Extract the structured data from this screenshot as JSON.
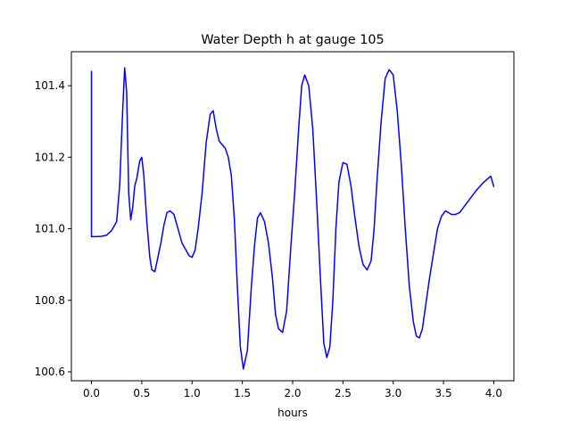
{
  "chart_data": {
    "type": "line",
    "title": "Water Depth h at gauge 105",
    "xlabel": "hours",
    "ylabel": "",
    "xlim": [
      -0.2,
      4.2
    ],
    "ylim": [
      100.575,
      101.495
    ],
    "xticks": [
      0.0,
      0.5,
      1.0,
      1.5,
      2.0,
      2.5,
      3.0,
      3.5,
      4.0
    ],
    "xtick_labels": [
      "0.0",
      "0.5",
      "1.0",
      "1.5",
      "2.0",
      "2.5",
      "3.0",
      "3.5",
      "4.0"
    ],
    "yticks": [
      100.6,
      100.8,
      101.0,
      101.2,
      101.4
    ],
    "ytick_labels": [
      "100.6",
      "100.8",
      "101.0",
      "101.2",
      "101.4"
    ],
    "grid": false,
    "legend": "none",
    "series": [
      {
        "color": "#0000ff",
        "x": [
          0.0,
          0.0,
          0.05,
          0.1,
          0.15,
          0.2,
          0.25,
          0.28,
          0.31,
          0.33,
          0.35,
          0.37,
          0.39,
          0.41,
          0.43,
          0.45,
          0.48,
          0.5,
          0.52,
          0.55,
          0.58,
          0.6,
          0.63,
          0.66,
          0.69,
          0.72,
          0.75,
          0.78,
          0.82,
          0.86,
          0.9,
          0.94,
          0.97,
          1.0,
          1.03,
          1.06,
          1.1,
          1.14,
          1.18,
          1.21,
          1.24,
          1.27,
          1.3,
          1.33,
          1.36,
          1.39,
          1.42,
          1.45,
          1.48,
          1.51,
          1.55,
          1.59,
          1.62,
          1.65,
          1.68,
          1.72,
          1.76,
          1.8,
          1.83,
          1.86,
          1.9,
          1.94,
          1.98,
          2.02,
          2.06,
          2.09,
          2.12,
          2.16,
          2.2,
          2.24,
          2.28,
          2.31,
          2.34,
          2.37,
          2.4,
          2.43,
          2.46,
          2.5,
          2.54,
          2.58,
          2.62,
          2.66,
          2.7,
          2.74,
          2.78,
          2.81,
          2.84,
          2.88,
          2.92,
          2.96,
          3.0,
          3.04,
          3.08,
          3.12,
          3.16,
          3.2,
          3.23,
          3.26,
          3.29,
          3.32,
          3.36,
          3.4,
          3.44,
          3.48,
          3.52,
          3.55,
          3.58,
          3.62,
          3.66,
          3.7,
          3.74,
          3.78,
          3.82,
          3.86,
          3.9,
          3.94,
          3.97,
          4.0
        ],
        "y": [
          101.44,
          100.978,
          100.978,
          100.979,
          100.982,
          100.995,
          101.02,
          101.12,
          101.33,
          101.45,
          101.38,
          101.1,
          101.025,
          101.06,
          101.12,
          101.14,
          101.19,
          101.2,
          101.15,
          101.02,
          100.92,
          100.885,
          100.88,
          100.92,
          100.96,
          101.01,
          101.045,
          101.05,
          101.04,
          101.0,
          100.96,
          100.94,
          100.925,
          100.92,
          100.94,
          101.0,
          101.1,
          101.24,
          101.32,
          101.33,
          101.28,
          101.245,
          101.235,
          101.225,
          101.2,
          101.15,
          101.03,
          100.84,
          100.67,
          100.608,
          100.66,
          100.84,
          100.95,
          101.03,
          101.045,
          101.02,
          100.96,
          100.86,
          100.76,
          100.72,
          100.71,
          100.77,
          100.94,
          101.1,
          101.28,
          101.4,
          101.43,
          101.4,
          101.28,
          101.07,
          100.84,
          100.68,
          100.64,
          100.67,
          100.8,
          101.0,
          101.13,
          101.185,
          101.18,
          101.12,
          101.03,
          100.95,
          100.9,
          100.885,
          100.91,
          101.0,
          101.14,
          101.3,
          101.42,
          101.445,
          101.43,
          101.33,
          101.18,
          101.0,
          100.84,
          100.74,
          100.7,
          100.695,
          100.72,
          100.78,
          100.86,
          100.93,
          101.0,
          101.035,
          101.05,
          101.045,
          101.04,
          101.04,
          101.045,
          101.06,
          101.075,
          101.09,
          101.105,
          101.118,
          101.13,
          101.14,
          101.147,
          101.118
        ]
      }
    ]
  }
}
